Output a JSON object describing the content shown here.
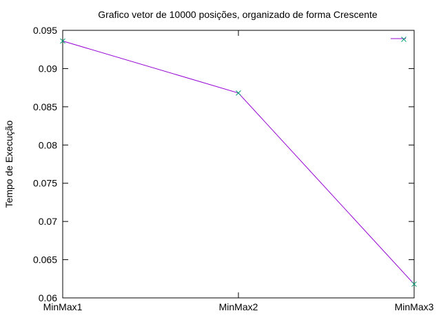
{
  "chart_data": {
    "type": "line",
    "title": "Grafico vetor de 10000 posições, organizado de forma Crescente",
    "xlabel": "",
    "ylabel": "Tempo de Execução",
    "categories": [
      "MinMax1",
      "MinMax2",
      "MinMax3"
    ],
    "ylim": [
      0.06,
      0.095
    ],
    "yticks": [
      "0.06",
      "0.065",
      "0.07",
      "0.075",
      "0.08",
      "0.085",
      "0.09",
      "0.095"
    ],
    "grid": false,
    "legend": "top-right",
    "series": [
      {
        "values": [
          0.0936,
          0.0868,
          0.0618
        ],
        "color": "#9400d3",
        "marker": "x",
        "marker_color": "#009e73"
      }
    ]
  }
}
